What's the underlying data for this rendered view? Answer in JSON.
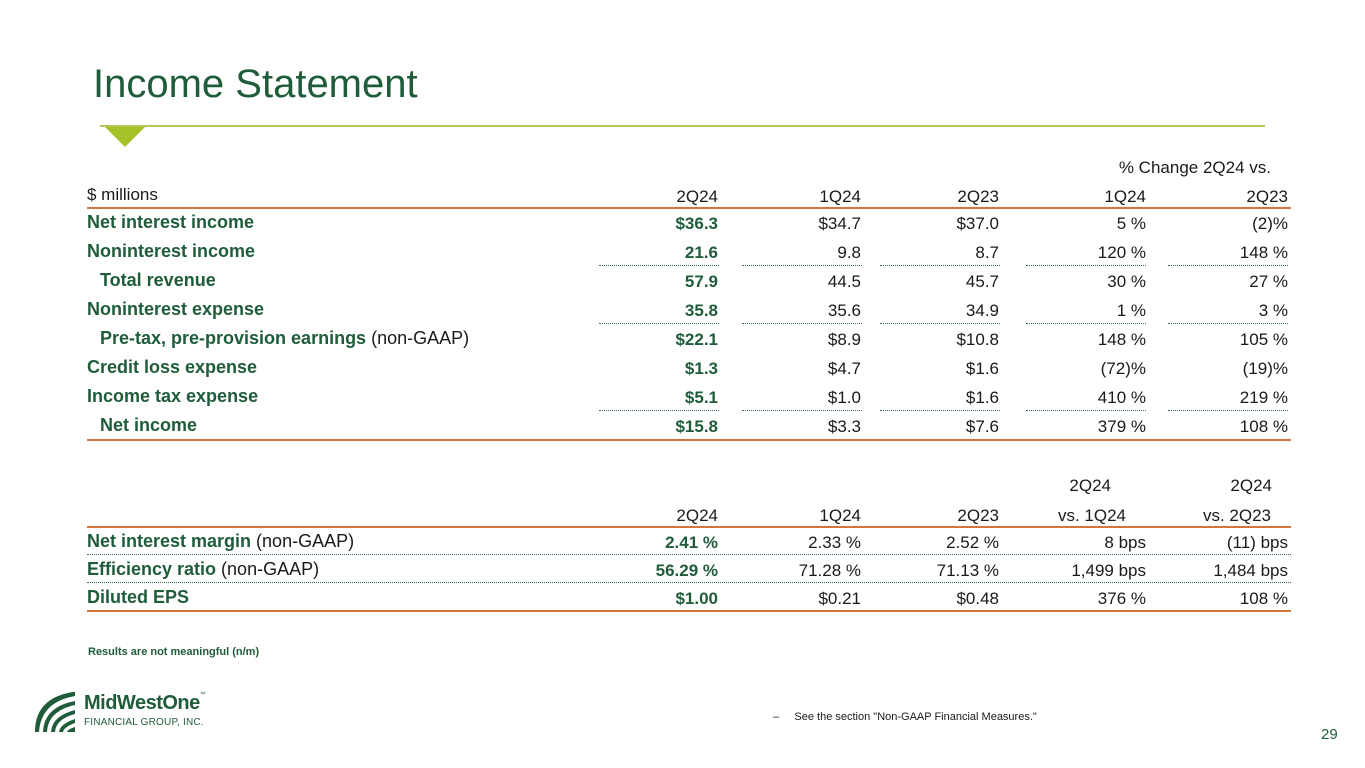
{
  "title": "Income Statement",
  "income": {
    "pct_change_header": "% Change 2Q24 vs.",
    "headers": [
      "$ millions",
      "2Q24",
      "1Q24",
      "2Q23",
      "1Q24",
      "2Q23"
    ],
    "rows": [
      {
        "label": "Net interest income",
        "suffix": "",
        "cols": [
          "$36.3",
          "$34.7",
          "$37.0",
          "5 %",
          "(2)%"
        ]
      },
      {
        "label": "Noninterest income",
        "suffix": "",
        "cols": [
          "21.6",
          "9.8",
          "8.7",
          "120 %",
          "148 %"
        ]
      },
      {
        "label": "Total revenue",
        "suffix": "",
        "cols": [
          "57.9",
          "44.5",
          "45.7",
          "30 %",
          "27 %"
        ]
      },
      {
        "label": "Noninterest expense",
        "suffix": "",
        "cols": [
          "35.8",
          "35.6",
          "34.9",
          "1 %",
          "3 %"
        ]
      },
      {
        "label": "Pre-tax, pre-provision earnings",
        "suffix": " (non-GAAP)",
        "cols": [
          "$22.1",
          "$8.9",
          "$10.8",
          "148 %",
          "105 %"
        ]
      },
      {
        "label": "Credit loss expense",
        "suffix": "",
        "cols": [
          "$1.3",
          "$4.7",
          "$1.6",
          "(72)%",
          "(19)%"
        ]
      },
      {
        "label": "Income tax expense",
        "suffix": "",
        "cols": [
          "$5.1",
          "$1.0",
          "$1.6",
          "410 %",
          "219 %"
        ]
      },
      {
        "label": "Net income",
        "suffix": "",
        "cols": [
          "$15.8",
          "$3.3",
          "$7.6",
          "379 %",
          "108 %"
        ]
      }
    ]
  },
  "metrics": {
    "headers_top": [
      "2Q24",
      "2Q24"
    ],
    "headers": [
      "2Q24",
      "1Q24",
      "2Q23",
      "vs. 1Q24",
      "vs. 2Q23"
    ],
    "rows": [
      {
        "label": "Net interest margin",
        "suffix": " (non-GAAP)",
        "cols": [
          "2.41 %",
          "2.33 %",
          "2.52 %",
          "8 bps",
          "(11) bps"
        ]
      },
      {
        "label": "Efficiency ratio",
        "suffix": " (non-GAAP)",
        "cols": [
          "56.29 %",
          "71.28 %",
          "71.13 %",
          "1,499 bps",
          "1,484 bps"
        ]
      },
      {
        "label": "Diluted EPS",
        "suffix": "",
        "cols": [
          "$1.00",
          "$0.21",
          "$0.48",
          "376 %",
          "108 %"
        ]
      }
    ]
  },
  "note": "Results are not meaningful (n/m)",
  "footnote": "–     See the section \"Non-GAAP Financial Measures.\"",
  "page_number": "29",
  "logo": {
    "main": "MidWestOne",
    "tm": "™",
    "sub": "FINANCIAL GROUP, INC."
  },
  "colors": {
    "brand_green": "#1f5c3a",
    "accent_lime": "#a6c22a",
    "rule_orange": "#d2773c"
  }
}
